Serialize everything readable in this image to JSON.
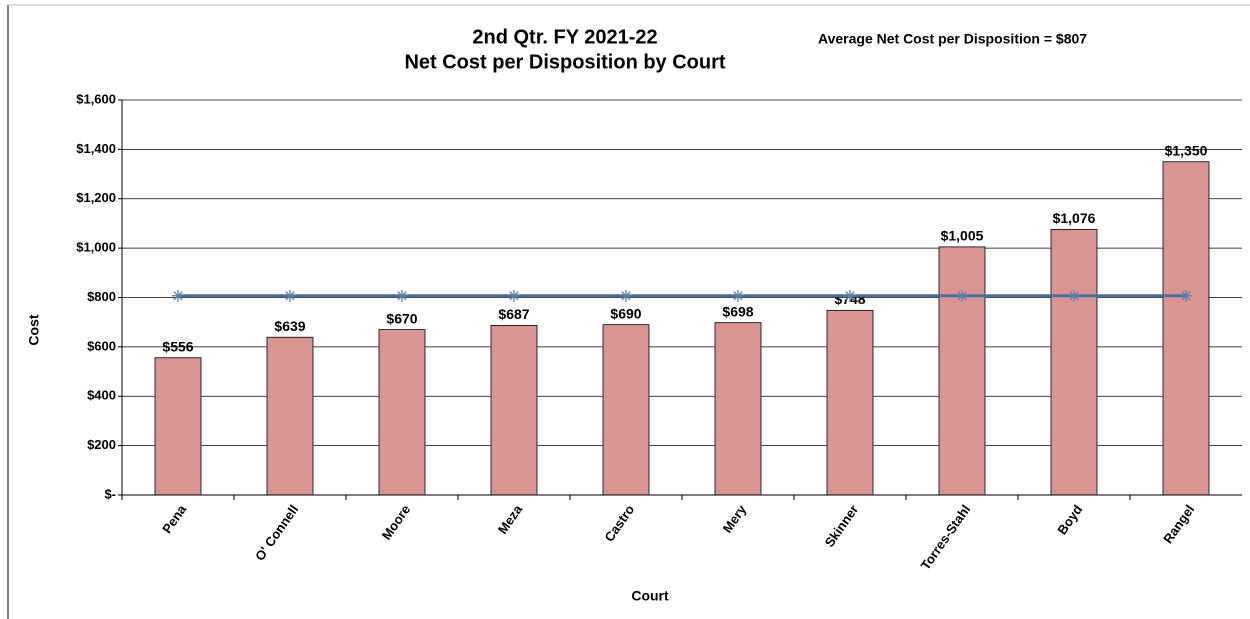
{
  "chart_data": {
    "type": "bar",
    "title": "2nd Qtr. FY 2021-22",
    "subtitle": "Net Cost per Disposition by Court",
    "annotation": "Average Net Cost per Disposition = $807",
    "x_label": "Court",
    "y_label": "Cost",
    "categories": [
      "Pena",
      "O' Connell",
      "Moore",
      "Meza",
      "Castro",
      "Mery",
      "Skinner",
      "Torres-Stahl",
      "Boyd",
      "Rangel"
    ],
    "series": [
      {
        "type": "bar",
        "color": "#d99594",
        "values": [
          556,
          639,
          670,
          687,
          690,
          698,
          748,
          1005,
          1076,
          1350
        ],
        "value_labels": [
          "$556",
          "$639",
          "$670",
          "$687",
          "$690",
          "$698",
          "$748",
          "$1,005",
          "$1,076",
          "$1,350"
        ]
      },
      {
        "type": "line",
        "color": "#4a6f9a",
        "values": [
          807,
          807,
          807,
          807,
          807,
          807,
          807,
          807,
          807,
          807
        ]
      }
    ],
    "ylim": [
      0,
      1600
    ],
    "yticks": [
      {
        "value": 0,
        "label": "$-"
      },
      {
        "value": 200,
        "label": "$200"
      },
      {
        "value": 400,
        "label": "$400"
      },
      {
        "value": 600,
        "label": "$600"
      },
      {
        "value": 800,
        "label": "$800"
      },
      {
        "value": 1000,
        "label": "$1,000"
      },
      {
        "value": 1200,
        "label": "$1,200"
      },
      {
        "value": 1400,
        "label": "$1,400"
      },
      {
        "value": 1600,
        "label": "$1,600"
      }
    ],
    "grid": true
  }
}
